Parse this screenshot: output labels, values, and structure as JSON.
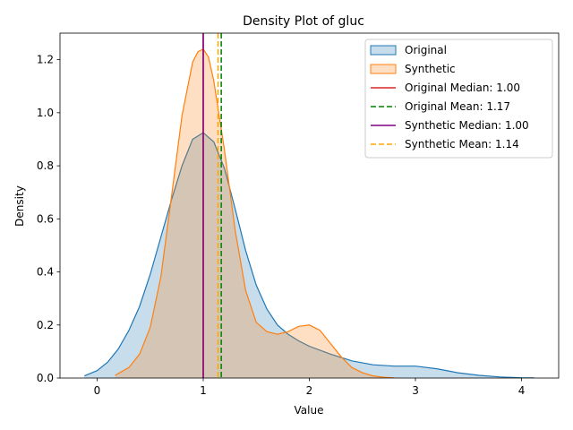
{
  "chart_data": {
    "type": "area",
    "title": "Density Plot of gluc",
    "xlabel": "Value",
    "ylabel": "Density",
    "xlim": [
      -0.35,
      4.35
    ],
    "ylim": [
      0,
      1.3
    ],
    "xticks": [
      0,
      1,
      2,
      3,
      4
    ],
    "yticks": [
      0.0,
      0.2,
      0.4,
      0.6,
      0.8,
      1.0,
      1.2
    ],
    "ytick_labels": [
      "0.0",
      "0.2",
      "0.4",
      "0.6",
      "0.8",
      "1.0",
      "1.2"
    ],
    "grid": false,
    "legend_position": "top-right",
    "series": [
      {
        "name": "Original",
        "kind": "density",
        "fill_color": "#1f77b4",
        "x": [
          -0.12,
          0.0,
          0.1,
          0.2,
          0.3,
          0.4,
          0.5,
          0.6,
          0.7,
          0.8,
          0.9,
          1.0,
          1.1,
          1.2,
          1.3,
          1.4,
          1.5,
          1.6,
          1.7,
          1.8,
          1.9,
          2.0,
          2.2,
          2.4,
          2.6,
          2.8,
          3.0,
          3.2,
          3.4,
          3.6,
          3.8,
          4.0,
          4.12
        ],
        "y": [
          0.008,
          0.028,
          0.06,
          0.11,
          0.18,
          0.27,
          0.39,
          0.53,
          0.67,
          0.8,
          0.9,
          0.925,
          0.89,
          0.79,
          0.64,
          0.48,
          0.35,
          0.26,
          0.2,
          0.165,
          0.14,
          0.12,
          0.09,
          0.065,
          0.05,
          0.045,
          0.045,
          0.035,
          0.02,
          0.01,
          0.004,
          0.001,
          0.0005
        ]
      },
      {
        "name": "Synthetic",
        "kind": "density",
        "fill_color": "#ff7f0e",
        "x": [
          0.17,
          0.3,
          0.4,
          0.5,
          0.6,
          0.7,
          0.8,
          0.9,
          0.95,
          1.0,
          1.05,
          1.1,
          1.2,
          1.3,
          1.4,
          1.5,
          1.6,
          1.7,
          1.8,
          1.9,
          2.0,
          2.1,
          2.2,
          2.3,
          2.4,
          2.5,
          2.6,
          2.7,
          2.8
        ],
        "y": [
          0.01,
          0.04,
          0.09,
          0.19,
          0.38,
          0.68,
          0.99,
          1.19,
          1.23,
          1.24,
          1.21,
          1.12,
          0.86,
          0.56,
          0.33,
          0.21,
          0.175,
          0.165,
          0.175,
          0.195,
          0.2,
          0.18,
          0.13,
          0.08,
          0.04,
          0.02,
          0.008,
          0.003,
          0.0005
        ]
      }
    ],
    "vlines": [
      {
        "name": "Original Median: 1.00",
        "x": 1.0,
        "color": "#d62728",
        "style": "solid"
      },
      {
        "name": "Original Mean: 1.17",
        "x": 1.17,
        "color": "#008000",
        "style": "dashed"
      },
      {
        "name": "Synthetic Median: 1.00",
        "x": 1.0,
        "color": "#800080",
        "style": "solid"
      },
      {
        "name": "Synthetic Mean: 1.14",
        "x": 1.14,
        "color": "#ffa500",
        "style": "dashed"
      }
    ]
  }
}
